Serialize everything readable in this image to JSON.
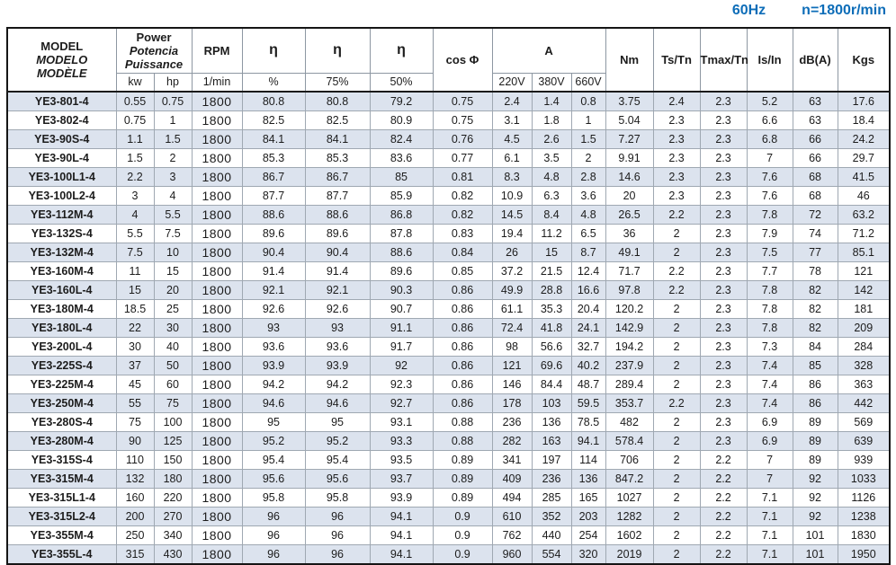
{
  "title": {
    "frequency": "60Hz",
    "speed": "n=1800r/min",
    "accent_color": "#0d6db8"
  },
  "table": {
    "header": {
      "model": [
        "MODEL",
        "MODELO",
        "MODÈLE"
      ],
      "power": [
        "Power",
        "Potencia",
        "Puissance"
      ],
      "power_units": {
        "kw": "kw",
        "hp": "hp"
      },
      "rpm": "RPM",
      "rpm_unit": "1/min",
      "eta": "η",
      "eta_units": [
        "%",
        "75%",
        "50%"
      ],
      "cos_phi": "cos Φ",
      "current": "A",
      "current_units": [
        "220V",
        "380V",
        "660V"
      ],
      "nm": "Nm",
      "ts_tn": "Ts/Tn",
      "tmax_tn": "Tmax/Tn",
      "is_in": "Is/In",
      "db": "dB(A)",
      "kgs": "Kgs"
    },
    "stripe_color": "#dce3ee",
    "rows": [
      [
        "YE3-801-4",
        "0.55",
        "0.75",
        "1800",
        "80.8",
        "80.8",
        "79.2",
        "0.75",
        "2.4",
        "1.4",
        "0.8",
        "3.75",
        "2.4",
        "2.3",
        "5.2",
        "63",
        "17.6"
      ],
      [
        "YE3-802-4",
        "0.75",
        "1",
        "1800",
        "82.5",
        "82.5",
        "80.9",
        "0.75",
        "3.1",
        "1.8",
        "1",
        "5.04",
        "2.3",
        "2.3",
        "6.6",
        "63",
        "18.4"
      ],
      [
        "YE3-90S-4",
        "1.1",
        "1.5",
        "1800",
        "84.1",
        "84.1",
        "82.4",
        "0.76",
        "4.5",
        "2.6",
        "1.5",
        "7.27",
        "2.3",
        "2.3",
        "6.8",
        "66",
        "24.2"
      ],
      [
        "YE3-90L-4",
        "1.5",
        "2",
        "1800",
        "85.3",
        "85.3",
        "83.6",
        "0.77",
        "6.1",
        "3.5",
        "2",
        "9.91",
        "2.3",
        "2.3",
        "7",
        "66",
        "29.7"
      ],
      [
        "YE3-100L1-4",
        "2.2",
        "3",
        "1800",
        "86.7",
        "86.7",
        "85",
        "0.81",
        "8.3",
        "4.8",
        "2.8",
        "14.6",
        "2.3",
        "2.3",
        "7.6",
        "68",
        "41.5"
      ],
      [
        "YE3-100L2-4",
        "3",
        "4",
        "1800",
        "87.7",
        "87.7",
        "85.9",
        "0.82",
        "10.9",
        "6.3",
        "3.6",
        "20",
        "2.3",
        "2.3",
        "7.6",
        "68",
        "46"
      ],
      [
        "YE3-112M-4",
        "4",
        "5.5",
        "1800",
        "88.6",
        "88.6",
        "86.8",
        "0.82",
        "14.5",
        "8.4",
        "4.8",
        "26.5",
        "2.2",
        "2.3",
        "7.8",
        "72",
        "63.2"
      ],
      [
        "YE3-132S-4",
        "5.5",
        "7.5",
        "1800",
        "89.6",
        "89.6",
        "87.8",
        "0.83",
        "19.4",
        "11.2",
        "6.5",
        "36",
        "2",
        "2.3",
        "7.9",
        "74",
        "71.2"
      ],
      [
        "YE3-132M-4",
        "7.5",
        "10",
        "1800",
        "90.4",
        "90.4",
        "88.6",
        "0.84",
        "26",
        "15",
        "8.7",
        "49.1",
        "2",
        "2.3",
        "7.5",
        "77",
        "85.1"
      ],
      [
        "YE3-160M-4",
        "11",
        "15",
        "1800",
        "91.4",
        "91.4",
        "89.6",
        "0.85",
        "37.2",
        "21.5",
        "12.4",
        "71.7",
        "2.2",
        "2.3",
        "7.7",
        "78",
        "121"
      ],
      [
        "YE3-160L-4",
        "15",
        "20",
        "1800",
        "92.1",
        "92.1",
        "90.3",
        "0.86",
        "49.9",
        "28.8",
        "16.6",
        "97.8",
        "2.2",
        "2.3",
        "7.8",
        "82",
        "142"
      ],
      [
        "YE3-180M-4",
        "18.5",
        "25",
        "1800",
        "92.6",
        "92.6",
        "90.7",
        "0.86",
        "61.1",
        "35.3",
        "20.4",
        "120.2",
        "2",
        "2.3",
        "7.8",
        "82",
        "181"
      ],
      [
        "YE3-180L-4",
        "22",
        "30",
        "1800",
        "93",
        "93",
        "91.1",
        "0.86",
        "72.4",
        "41.8",
        "24.1",
        "142.9",
        "2",
        "2.3",
        "7.8",
        "82",
        "209"
      ],
      [
        "YE3-200L-4",
        "30",
        "40",
        "1800",
        "93.6",
        "93.6",
        "91.7",
        "0.86",
        "98",
        "56.6",
        "32.7",
        "194.2",
        "2",
        "2.3",
        "7.3",
        "84",
        "284"
      ],
      [
        "YE3-225S-4",
        "37",
        "50",
        "1800",
        "93.9",
        "93.9",
        "92",
        "0.86",
        "121",
        "69.6",
        "40.2",
        "237.9",
        "2",
        "2.3",
        "7.4",
        "85",
        "328"
      ],
      [
        "YE3-225M-4",
        "45",
        "60",
        "1800",
        "94.2",
        "94.2",
        "92.3",
        "0.86",
        "146",
        "84.4",
        "48.7",
        "289.4",
        "2",
        "2.3",
        "7.4",
        "86",
        "363"
      ],
      [
        "YE3-250M-4",
        "55",
        "75",
        "1800",
        "94.6",
        "94.6",
        "92.7",
        "0.86",
        "178",
        "103",
        "59.5",
        "353.7",
        "2.2",
        "2.3",
        "7.4",
        "86",
        "442"
      ],
      [
        "YE3-280S-4",
        "75",
        "100",
        "1800",
        "95",
        "95",
        "93.1",
        "0.88",
        "236",
        "136",
        "78.5",
        "482",
        "2",
        "2.3",
        "6.9",
        "89",
        "569"
      ],
      [
        "YE3-280M-4",
        "90",
        "125",
        "1800",
        "95.2",
        "95.2",
        "93.3",
        "0.88",
        "282",
        "163",
        "94.1",
        "578.4",
        "2",
        "2.3",
        "6.9",
        "89",
        "639"
      ],
      [
        "YE3-315S-4",
        "110",
        "150",
        "1800",
        "95.4",
        "95.4",
        "93.5",
        "0.89",
        "341",
        "197",
        "114",
        "706",
        "2",
        "2.2",
        "7",
        "89",
        "939"
      ],
      [
        "YE3-315M-4",
        "132",
        "180",
        "1800",
        "95.6",
        "95.6",
        "93.7",
        "0.89",
        "409",
        "236",
        "136",
        "847.2",
        "2",
        "2.2",
        "7",
        "92",
        "1033"
      ],
      [
        "YE3-315L1-4",
        "160",
        "220",
        "1800",
        "95.8",
        "95.8",
        "93.9",
        "0.89",
        "494",
        "285",
        "165",
        "1027",
        "2",
        "2.2",
        "7.1",
        "92",
        "1126"
      ],
      [
        "YE3-315L2-4",
        "200",
        "270",
        "1800",
        "96",
        "96",
        "94.1",
        "0.9",
        "610",
        "352",
        "203",
        "1282",
        "2",
        "2.2",
        "7.1",
        "92",
        "1238"
      ],
      [
        "YE3-355M-4",
        "250",
        "340",
        "1800",
        "96",
        "96",
        "94.1",
        "0.9",
        "762",
        "440",
        "254",
        "1602",
        "2",
        "2.2",
        "7.1",
        "101",
        "1830"
      ],
      [
        "YE3-355L-4",
        "315",
        "430",
        "1800",
        "96",
        "96",
        "94.1",
        "0.9",
        "960",
        "554",
        "320",
        "2019",
        "2",
        "2.2",
        "7.1",
        "101",
        "1950"
      ]
    ]
  }
}
